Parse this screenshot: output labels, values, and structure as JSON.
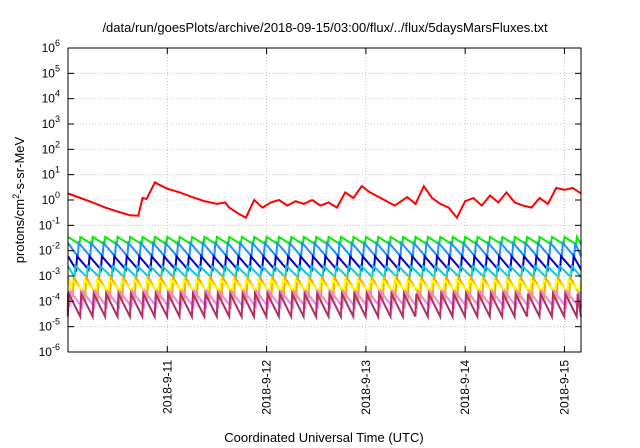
{
  "chart_data": {
    "type": "line",
    "title": "/data/run/goesPlots/archive/2018-09-15/03:00/flux/../flux/5daysMarsFluxes.txt",
    "xlabel": "Coordinated Universal Time (UTC)",
    "ylabel": {
      "base": "protons/cm",
      "sup": "2",
      "rest": "-s-sr-MeV"
    },
    "scale_y": "log",
    "ylim": [
      1e-06,
      1000000.0
    ],
    "xlim": [
      "2018-09-10T00:00",
      "2018-09-15T04:00"
    ],
    "x_ticks": [
      "2018-09-11",
      "2018-09-12",
      "2018-09-13",
      "2018-09-14",
      "2018-09-15"
    ],
    "x_tick_labels": [
      "2018-9-11",
      "2018-9-12",
      "2018-9-13",
      "2018-9-14",
      "2018-9-15"
    ],
    "y_tick_exponents": [
      -6,
      -5,
      -4,
      -3,
      -2,
      -1,
      0,
      1,
      2,
      3,
      4,
      5,
      6
    ],
    "y_tick_base": "10",
    "grid": true,
    "legend": "none",
    "series": [
      {
        "color": "#ff0000",
        "x": [
          "2018-09-10T00:00",
          "2018-09-10T03:00",
          "2018-09-10T06:00",
          "2018-09-10T09:00",
          "2018-09-10T12:00",
          "2018-09-10T15:00",
          "2018-09-10T17:00",
          "2018-09-10T18:00",
          "2018-09-10T19:00",
          "2018-09-10T21:00",
          "2018-09-10T22:00",
          "2018-09-11T00:00",
          "2018-09-11T03:00",
          "2018-09-11T06:00",
          "2018-09-11T09:00",
          "2018-09-11T12:00",
          "2018-09-11T14:00",
          "2018-09-11T15:00",
          "2018-09-11T17:00",
          "2018-09-11T19:00",
          "2018-09-11T21:00",
          "2018-09-11T23:00",
          "2018-09-12T01:00",
          "2018-09-12T03:00",
          "2018-09-12T05:00",
          "2018-09-12T07:00",
          "2018-09-12T09:00",
          "2018-09-12T11:00",
          "2018-09-12T13:00",
          "2018-09-12T15:00",
          "2018-09-12T17:00",
          "2018-09-12T19:00",
          "2018-09-12T21:00",
          "2018-09-12T23:00",
          "2018-09-13T01:00",
          "2018-09-13T04:00",
          "2018-09-13T07:00",
          "2018-09-13T10:00",
          "2018-09-13T12:00",
          "2018-09-13T14:00",
          "2018-09-13T16:00",
          "2018-09-13T18:00",
          "2018-09-13T20:00",
          "2018-09-13T22:00",
          "2018-09-14T00:00",
          "2018-09-14T02:00",
          "2018-09-14T04:00",
          "2018-09-14T06:00",
          "2018-09-14T08:00",
          "2018-09-14T10:00",
          "2018-09-14T12:00",
          "2018-09-14T14:00",
          "2018-09-14T16:00",
          "2018-09-14T18:00",
          "2018-09-14T20:00",
          "2018-09-14T22:00",
          "2018-09-15T00:00",
          "2018-09-15T02:00",
          "2018-09-15T04:00"
        ],
        "y": [
          1.8,
          1.2,
          0.8,
          0.5,
          0.35,
          0.25,
          0.24,
          1.2,
          1.1,
          5.0,
          4.0,
          2.8,
          2.0,
          1.3,
          0.9,
          0.7,
          0.8,
          0.5,
          0.3,
          0.2,
          1.0,
          0.5,
          0.8,
          1.0,
          0.6,
          0.9,
          0.7,
          1.0,
          0.6,
          0.8,
          0.5,
          2.0,
          1.2,
          3.5,
          2.0,
          1.1,
          0.6,
          1.3,
          0.7,
          3.5,
          1.2,
          0.7,
          0.5,
          0.2,
          0.9,
          1.2,
          0.6,
          1.5,
          0.8,
          2.0,
          0.8,
          0.6,
          0.5,
          1.2,
          0.7,
          3.0,
          2.5,
          3.0,
          1.8
        ]
      }
    ],
    "sawtooth_series": [
      {
        "color": "#00ee00",
        "top": 0.035,
        "bottom": 0.018
      },
      {
        "color": "#1e90ff",
        "top": 0.02,
        "bottom": 0.006
      },
      {
        "color": "#0000cd",
        "top": 0.006,
        "bottom": 0.0018
      },
      {
        "color": "#00ced1",
        "top": 0.0025,
        "bottom": 0.0009
      },
      {
        "color": "#ffa500",
        "top": 0.0009,
        "bottom": 0.00015
      },
      {
        "color": "#ffff00",
        "top": 0.0007,
        "bottom": 0.00025
      },
      {
        "color": "#ee82ee",
        "top": 0.00025,
        "bottom": 6e-05
      },
      {
        "color": "#b03060",
        "top": 0.0002,
        "bottom": 2.5e-05
      }
    ],
    "sawtooth_cycle_hours": 3
  }
}
